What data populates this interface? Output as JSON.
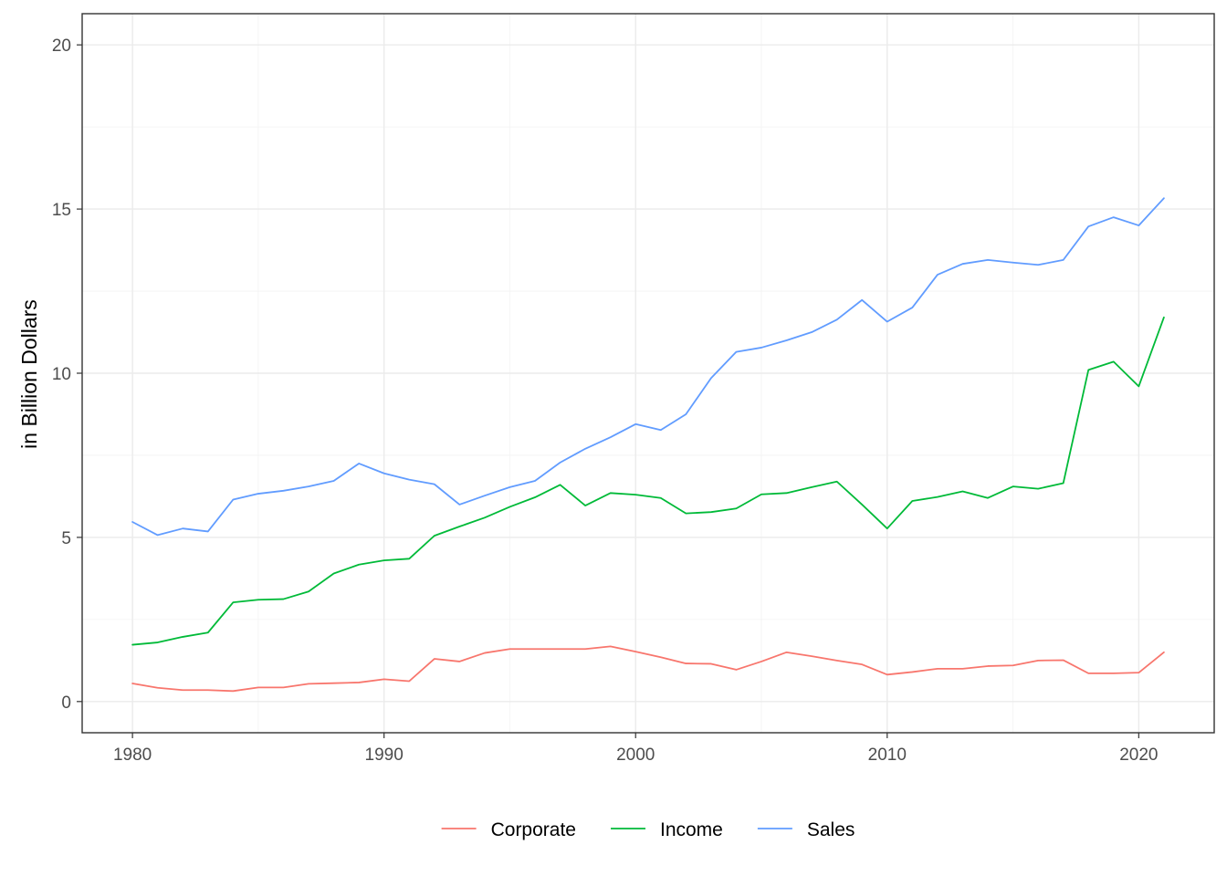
{
  "chart_data": {
    "type": "line",
    "title": "",
    "xlabel": "",
    "ylabel": "in Billion Dollars",
    "xlim": [
      1978,
      2023
    ],
    "ylim": [
      -0.95,
      20.95
    ],
    "x_ticks": [
      1980,
      1990,
      2000,
      2010,
      2020
    ],
    "y_ticks": [
      0,
      5,
      10,
      15,
      20
    ],
    "grid": true,
    "legend_position": "bottom",
    "x": [
      1980,
      1981,
      1982,
      1983,
      1984,
      1985,
      1986,
      1987,
      1988,
      1989,
      1990,
      1991,
      1992,
      1993,
      1994,
      1995,
      1996,
      1997,
      1998,
      1999,
      2000,
      2001,
      2002,
      2003,
      2004,
      2005,
      2006,
      2007,
      2008,
      2009,
      2010,
      2011,
      2012,
      2013,
      2014,
      2015,
      2016,
      2017,
      2018,
      2019,
      2020,
      2021
    ],
    "series": [
      {
        "name": "Corporate",
        "color": "#F8766D",
        "values": [
          0.55,
          0.42,
          0.35,
          0.35,
          0.32,
          0.43,
          0.43,
          0.54,
          0.56,
          0.58,
          0.68,
          0.62,
          1.3,
          1.22,
          1.48,
          1.6,
          1.6,
          1.6,
          1.6,
          1.68,
          1.52,
          1.35,
          1.16,
          1.15,
          0.97,
          1.22,
          1.5,
          1.38,
          1.25,
          1.13,
          0.82,
          0.9,
          1.0,
          1.0,
          1.08,
          1.1,
          1.25,
          1.26,
          0.86,
          0.86,
          0.88,
          1.5
        ]
      },
      {
        "name": "Income",
        "color": "#00BA38",
        "values": [
          1.73,
          1.8,
          1.97,
          2.1,
          3.02,
          3.1,
          3.12,
          3.35,
          3.9,
          4.17,
          4.3,
          4.35,
          5.05,
          5.33,
          5.6,
          5.93,
          6.22,
          6.6,
          5.97,
          6.35,
          6.3,
          6.2,
          5.73,
          5.77,
          5.88,
          6.31,
          6.35,
          6.53,
          6.7,
          6.0,
          5.27,
          6.11,
          6.23,
          6.4,
          6.2,
          6.55,
          6.48,
          6.65,
          10.1,
          10.35,
          9.6,
          11.7
        ]
      },
      {
        "name": "Sales",
        "color": "#619CFF",
        "values": [
          5.47,
          5.07,
          5.27,
          5.18,
          6.15,
          6.33,
          6.42,
          6.55,
          6.72,
          7.25,
          6.95,
          6.76,
          6.62,
          6.0,
          6.27,
          6.53,
          6.72,
          7.28,
          7.7,
          8.05,
          8.45,
          8.27,
          8.75,
          9.85,
          10.65,
          10.78,
          11.0,
          11.25,
          11.63,
          12.23,
          11.57,
          12.0,
          13.0,
          13.33,
          13.45,
          13.37,
          13.3,
          13.45,
          14.47,
          14.75,
          14.5,
          15.33
        ]
      }
    ]
  }
}
